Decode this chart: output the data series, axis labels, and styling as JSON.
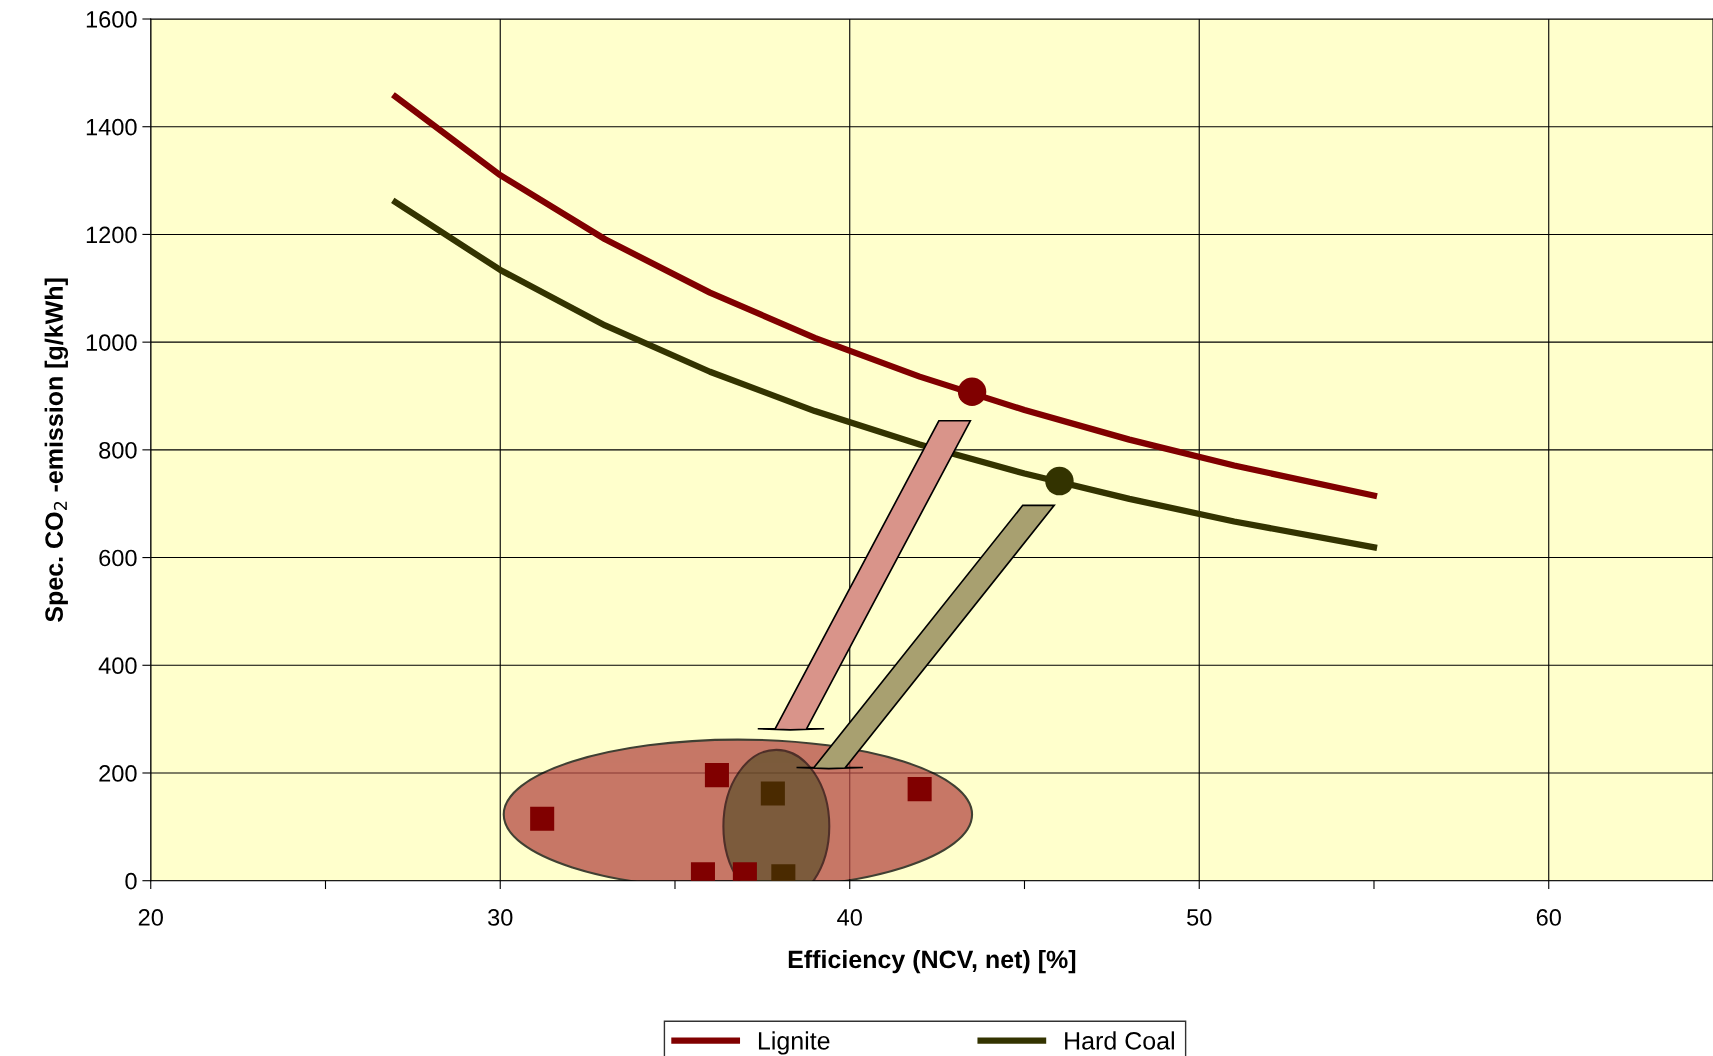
{
  "chart_data": {
    "type": "line",
    "xlabel": "Efficiency (NCV, net) [%]",
    "ylabel": "Spec. CO$_{2}$ -emission [g/kWh]",
    "xlim": [
      20,
      64.7
    ],
    "ylim": [
      0,
      1600
    ],
    "xticks": [
      20,
      {
        "value": 25,
        "label": null
      },
      30,
      {
        "value": 35,
        "label": null
      },
      40,
      {
        "value": 45,
        "label": null
      },
      50,
      {
        "value": 55,
        "label": null
      },
      60
    ],
    "yticks": [
      0,
      200,
      400,
      600,
      800,
      1000,
      1200,
      1400,
      1600
    ],
    "grid": true,
    "legend": "bottom",
    "line_style": "solid",
    "marker": "none",
    "series": [
      {
        "name": "Lignite",
        "color": "#800000",
        "x": [
          27,
          30,
          33,
          36,
          39,
          42,
          45,
          48,
          51,
          55
        ],
        "values": [
          1456,
          1310,
          1191,
          1092,
          1008,
          936,
          874,
          819,
          771,
          715
        ]
      },
      {
        "name": "Hard Coal",
        "color": "#333300",
        "x": [
          27,
          30,
          33,
          36,
          39,
          42,
          45,
          48,
          51,
          55
        ],
        "values": [
          1260,
          1134,
          1031,
          945,
          872,
          810,
          756,
          709,
          667,
          619
        ]
      },
      {
        "type": "scatter",
        "marker": "circle",
        "colors": [
          "#800000",
          "#333300"
        ],
        "x": [
          43.5,
          46.0
        ],
        "values": [
          908,
          742
        ]
      },
      {
        "type": "scatter",
        "marker": "square",
        "colors": [
          "#800000",
          "#800000",
          "#4a2a00",
          "#800000",
          "#800000",
          "#800000",
          "#4a2a00"
        ],
        "x": [
          31.2,
          36.2,
          37.8,
          42.0,
          35.8,
          37.0,
          38.1
        ],
        "values": [
          115,
          196,
          162,
          170,
          12,
          12,
          8
        ]
      }
    ]
  }
}
